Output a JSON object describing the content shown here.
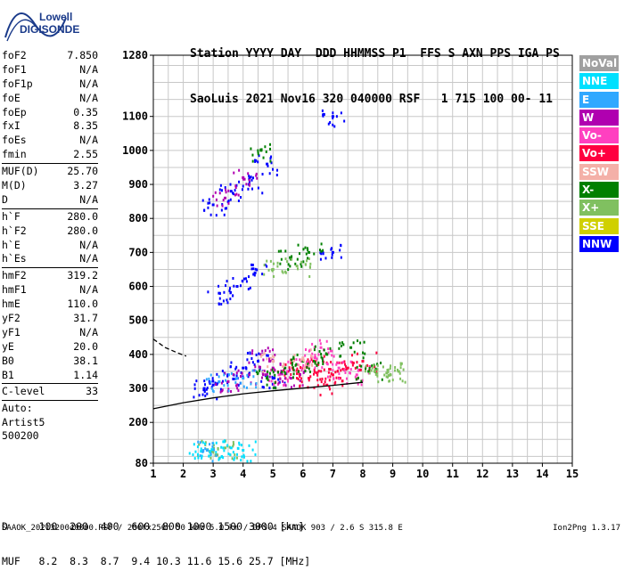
{
  "logo": {
    "line1": "Lowell",
    "line2": "DIGISONDE"
  },
  "header": {
    "line1": "Station YYYY DAY  DDD HHMMSS P1  FFS S AXN PPS IGA PS",
    "line2": "SaoLuis 2021 Nov16 320 040000 RSF   1 715 100 00- 11"
  },
  "params": {
    "group1": [
      {
        "label": "foF2",
        "value": "7.850"
      },
      {
        "label": "foF1",
        "value": "N/A"
      },
      {
        "label": "foF1p",
        "value": "N/A"
      },
      {
        "label": "foE",
        "value": "N/A"
      },
      {
        "label": "foEp",
        "value": "0.35"
      },
      {
        "label": "fxI",
        "value": "8.35"
      },
      {
        "label": "foEs",
        "value": "N/A"
      },
      {
        "label": "fmin",
        "value": "2.55"
      }
    ],
    "group2": [
      {
        "label": "MUF(D)",
        "value": "25.70"
      },
      {
        "label": "M(D)",
        "value": "3.27"
      },
      {
        "label": "D",
        "value": "N/A"
      }
    ],
    "group3": [
      {
        "label": "h`F",
        "value": "280.0"
      },
      {
        "label": "h`F2",
        "value": "280.0"
      },
      {
        "label": "h`E",
        "value": "N/A"
      },
      {
        "label": "h`Es",
        "value": "N/A"
      }
    ],
    "group4": [
      {
        "label": "hmF2",
        "value": "319.2"
      },
      {
        "label": "hmF1",
        "value": "N/A"
      },
      {
        "label": "hmE",
        "value": "110.0"
      },
      {
        "label": "yF2",
        "value": "31.7"
      },
      {
        "label": "yF1",
        "value": "N/A"
      },
      {
        "label": "yE",
        "value": "20.0"
      },
      {
        "label": "B0",
        "value": "38.1"
      },
      {
        "label": "B1",
        "value": "1.14"
      }
    ],
    "group5": [
      {
        "label": "C-level",
        "value": "33"
      }
    ],
    "auto": {
      "line1": "Auto:",
      "line2": "Artist5",
      "line3": "500200"
    }
  },
  "legend": [
    {
      "label": "NoVal",
      "color": "#a0a0a0"
    },
    {
      "label": "NNE",
      "color": "#00e0ff"
    },
    {
      "label": "E",
      "color": "#30a8ff"
    },
    {
      "label": "W",
      "color": "#b000b0"
    },
    {
      "label": "Vo-",
      "color": "#ff40c0"
    },
    {
      "label": "Vo+",
      "color": "#ff0040"
    },
    {
      "label": "SSW",
      "color": "#f4b0a8"
    },
    {
      "label": "X-",
      "color": "#008000"
    },
    {
      "label": "X+",
      "color": "#80c060"
    },
    {
      "label": "SSE",
      "color": "#d0d000"
    },
    {
      "label": "NNW",
      "color": "#0000ff"
    }
  ],
  "footer": {
    "line1": "D     100  200  400  600  800 1000 1500 3000 [km]",
    "line2": "MUF   8.2  8.3  8.7  9.4 10.3 11.6 15.6 25.7 [MHz]",
    "note": "SAAOK_2021320040000.RSF / 280fx256h 50 kHz 5.0 km / DPS-4 SAAOK 903 / 2.6 S 315.8 E",
    "version": "Ion2Png 1.3.17"
  },
  "chart_data": {
    "type": "scatter",
    "x_ticks": [
      "1",
      "2",
      "3",
      "4",
      "5",
      "6",
      "7",
      "8",
      "9",
      "10",
      "11",
      "12",
      "13",
      "14",
      "15"
    ],
    "y_ticks": [
      "80",
      "200",
      "300",
      "400",
      "500",
      "600",
      "700",
      "800",
      "900",
      "1000",
      "1100",
      "1280"
    ],
    "xlim": [
      1,
      15
    ],
    "ylim": [
      80,
      1280
    ],
    "grid": true,
    "series": [
      {
        "name": "NNW",
        "color": "#0000ff",
        "values": [
          [
            2.7,
            300
          ],
          [
            3.0,
            310
          ],
          [
            3.5,
            340
          ],
          [
            4.0,
            360
          ],
          [
            4.5,
            380
          ],
          [
            5.0,
            330
          ],
          [
            3.2,
            580
          ],
          [
            3.8,
            600
          ],
          [
            4.4,
            640
          ],
          [
            3.0,
            840
          ],
          [
            3.6,
            880
          ],
          [
            4.2,
            900
          ],
          [
            4.8,
            960
          ],
          [
            7.0,
            1100
          ],
          [
            7.0,
            700
          ]
        ]
      },
      {
        "name": "Vo+",
        "color": "#ff0040",
        "values": [
          [
            5.5,
            350
          ],
          [
            6.0,
            360
          ],
          [
            6.5,
            370
          ],
          [
            7.0,
            340
          ],
          [
            7.5,
            360
          ],
          [
            8.0,
            380
          ],
          [
            6.2,
            330
          ],
          [
            6.8,
            310
          ]
        ]
      },
      {
        "name": "Vo-",
        "color": "#ff40c0",
        "values": [
          [
            5.2,
            340
          ],
          [
            5.8,
            370
          ],
          [
            6.4,
            390
          ],
          [
            7.2,
            360
          ],
          [
            7.8,
            340
          ],
          [
            6.6,
            420
          ]
        ]
      },
      {
        "name": "W",
        "color": "#b000b0",
        "values": [
          [
            3.5,
            320
          ],
          [
            4.2,
            340
          ],
          [
            5.0,
            360
          ],
          [
            5.6,
            330
          ],
          [
            4.6,
            400
          ],
          [
            3.4,
            860
          ],
          [
            4.0,
            920
          ]
        ]
      },
      {
        "name": "X-",
        "color": "#008000",
        "values": [
          [
            4.8,
            330
          ],
          [
            5.4,
            360
          ],
          [
            6.0,
            380
          ],
          [
            6.8,
            400
          ],
          [
            7.6,
            420
          ],
          [
            8.2,
            350
          ],
          [
            5.6,
            680
          ],
          [
            6.2,
            700
          ],
          [
            4.6,
            1000
          ]
        ]
      },
      {
        "name": "X+",
        "color": "#80c060",
        "values": [
          [
            8.4,
            350
          ],
          [
            8.8,
            345
          ],
          [
            9.2,
            350
          ],
          [
            5.0,
            650
          ],
          [
            5.8,
            660
          ],
          [
            2.8,
            120
          ],
          [
            3.4,
            125
          ]
        ]
      },
      {
        "name": "NNE",
        "color": "#00e0ff",
        "values": [
          [
            2.6,
            115
          ],
          [
            3.0,
            120
          ],
          [
            3.6,
            125
          ],
          [
            4.0,
            118
          ]
        ]
      },
      {
        "name": "E",
        "color": "#30a8ff",
        "values": [
          [
            3.2,
            320
          ],
          [
            4.0,
            330
          ],
          [
            2.8,
            118
          ]
        ]
      },
      {
        "name": "SSW",
        "color": "#f4b0a8",
        "values": [
          [
            5.0,
            380
          ],
          [
            6.0,
            390
          ]
        ]
      }
    ],
    "curves": {
      "solid_trace": [
        [
          1.0,
          240
        ],
        [
          2.0,
          258
        ],
        [
          3.0,
          272
        ],
        [
          4.0,
          284
        ],
        [
          5.0,
          293
        ],
        [
          6.0,
          301
        ],
        [
          7.0,
          309
        ],
        [
          8.0,
          318
        ]
      ],
      "dashed_trace": [
        [
          1.0,
          445
        ],
        [
          1.4,
          420
        ],
        [
          1.8,
          405
        ],
        [
          2.1,
          395
        ]
      ]
    }
  }
}
